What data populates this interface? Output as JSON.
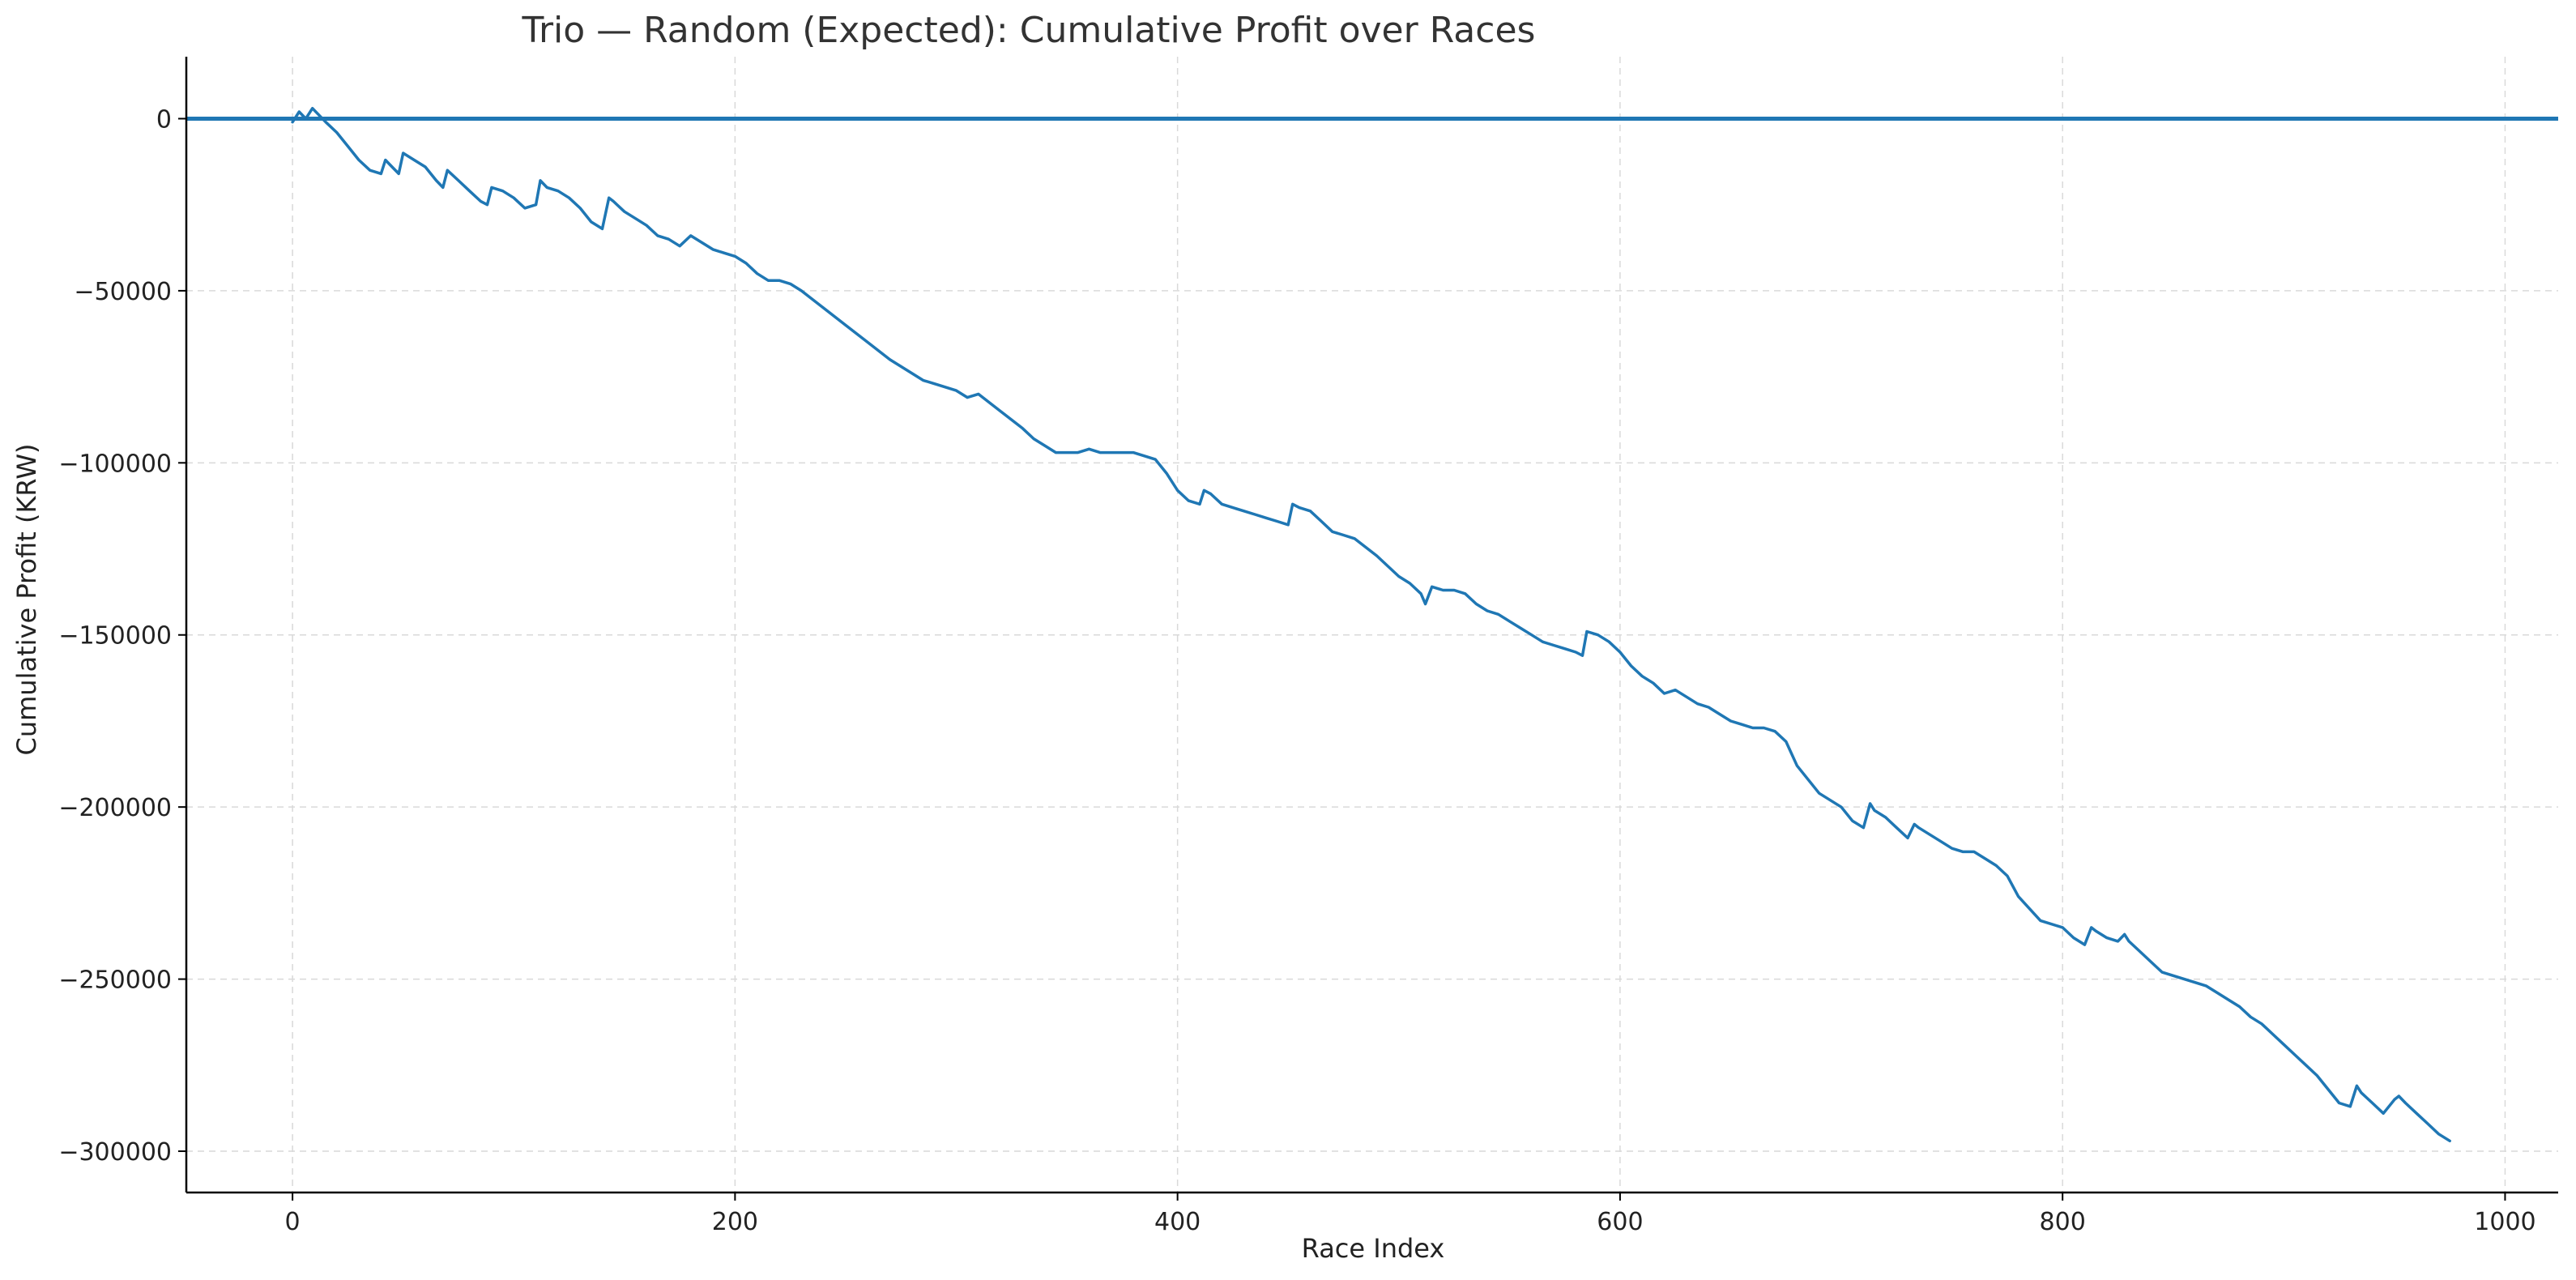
{
  "chart_data": {
    "type": "line",
    "title": "Trio — Random (Expected): Cumulative Profit over Races",
    "xlabel": "Race Index",
    "ylabel": "Cumulative Profit (KRW)",
    "xlim": [
      -48,
      1024
    ],
    "ylim": [
      -312000,
      18000
    ],
    "xticks": [
      0,
      200,
      400,
      600,
      800,
      1000
    ],
    "yticks": [
      0,
      -50000,
      -100000,
      -150000,
      -200000,
      -250000,
      -300000
    ],
    "xtick_labels": [
      "0",
      "200",
      "400",
      "600",
      "800",
      "1000"
    ],
    "ytick_labels": [
      "0",
      "−50000",
      "−100000",
      "−150000",
      "−200000",
      "−250000",
      "−300000"
    ],
    "grid": true,
    "line_color": "#1f77b4",
    "reference_line": {
      "y": 0,
      "color": "#1f77b4"
    },
    "series": [
      {
        "x": [
          0,
          3,
          6,
          9,
          12,
          15,
          20,
          25,
          30,
          35,
          40,
          42,
          45,
          48,
          50,
          55,
          60,
          65,
          68,
          70,
          75,
          80,
          85,
          88,
          90,
          95,
          100,
          105,
          110,
          112,
          115,
          120,
          125,
          130,
          135,
          140,
          143,
          145,
          150,
          155,
          160,
          165,
          170,
          175,
          180,
          185,
          190,
          195,
          200,
          205,
          210,
          215,
          220,
          225,
          230,
          240,
          250,
          260,
          270,
          280,
          285,
          290,
          300,
          305,
          310,
          320,
          330,
          335,
          340,
          345,
          350,
          355,
          360,
          365,
          370,
          375,
          380,
          385,
          390,
          395,
          400,
          405,
          410,
          412,
          415,
          420,
          425,
          430,
          435,
          440,
          445,
          450,
          452,
          455,
          460,
          465,
          470,
          475,
          480,
          490,
          500,
          505,
          510,
          512,
          515,
          520,
          525,
          530,
          535,
          540,
          545,
          550,
          555,
          560,
          565,
          570,
          575,
          580,
          583,
          585,
          590,
          595,
          600,
          605,
          610,
          615,
          620,
          625,
          630,
          635,
          640,
          645,
          650,
          655,
          660,
          665,
          670,
          675,
          680,
          690,
          700,
          705,
          710,
          713,
          715,
          720,
          725,
          730,
          733,
          735,
          740,
          745,
          750,
          755,
          760,
          765,
          770,
          775,
          780,
          790,
          800,
          805,
          810,
          813,
          815,
          820,
          825,
          828,
          830,
          835,
          840,
          845,
          850,
          855,
          860,
          865,
          870,
          875,
          880,
          885,
          890,
          895,
          900,
          905,
          910,
          915,
          920,
          925,
          930,
          933,
          935,
          940,
          945,
          950,
          952,
          955,
          960,
          965,
          970,
          975
        ],
        "values": [
          -1000,
          2000,
          0,
          3000,
          1000,
          -1000,
          -4000,
          -8000,
          -12000,
          -15000,
          -16000,
          -12000,
          -14000,
          -16000,
          -10000,
          -12000,
          -14000,
          -18000,
          -20000,
          -15000,
          -18000,
          -21000,
          -24000,
          -25000,
          -20000,
          -21000,
          -23000,
          -26000,
          -25000,
          -18000,
          -20000,
          -21000,
          -23000,
          -26000,
          -30000,
          -32000,
          -23000,
          -24000,
          -27000,
          -29000,
          -31000,
          -34000,
          -35000,
          -37000,
          -34000,
          -36000,
          -38000,
          -39000,
          -40000,
          -42000,
          -45000,
          -47000,
          -47000,
          -48000,
          -50000,
          -55000,
          -60000,
          -65000,
          -70000,
          -74000,
          -76000,
          -77000,
          -79000,
          -81000,
          -80000,
          -85000,
          -90000,
          -93000,
          -95000,
          -97000,
          -97000,
          -97000,
          -96000,
          -97000,
          -97000,
          -97000,
          -97000,
          -98000,
          -99000,
          -103000,
          -108000,
          -111000,
          -112000,
          -108000,
          -109000,
          -112000,
          -113000,
          -114000,
          -115000,
          -116000,
          -117000,
          -118000,
          -112000,
          -113000,
          -114000,
          -117000,
          -120000,
          -121000,
          -122000,
          -127000,
          -133000,
          -135000,
          -138000,
          -141000,
          -136000,
          -137000,
          -137000,
          -138000,
          -141000,
          -143000,
          -144000,
          -146000,
          -148000,
          -150000,
          -152000,
          -153000,
          -154000,
          -155000,
          -156000,
          -149000,
          -150000,
          -152000,
          -155000,
          -159000,
          -162000,
          -164000,
          -167000,
          -166000,
          -168000,
          -170000,
          -171000,
          -173000,
          -175000,
          -176000,
          -177000,
          -177000,
          -178000,
          -181000,
          -188000,
          -196000,
          -200000,
          -204000,
          -206000,
          -199000,
          -201000,
          -203000,
          -206000,
          -209000,
          -205000,
          -206000,
          -208000,
          -210000,
          -212000,
          -213000,
          -213000,
          -215000,
          -217000,
          -220000,
          -226000,
          -233000,
          -235000,
          -238000,
          -240000,
          -235000,
          -236000,
          -238000,
          -239000,
          -237000,
          -239000,
          -242000,
          -245000,
          -248000,
          -249000,
          -250000,
          -251000,
          -252000,
          -254000,
          -256000,
          -258000,
          -261000,
          -263000,
          -266000,
          -269000,
          -272000,
          -275000,
          -278000,
          -282000,
          -286000,
          -287000,
          -281000,
          -283000,
          -286000,
          -289000,
          -285000,
          -284000,
          -286000,
          -289000,
          -292000,
          -295000,
          -297000
        ]
      }
    ]
  }
}
